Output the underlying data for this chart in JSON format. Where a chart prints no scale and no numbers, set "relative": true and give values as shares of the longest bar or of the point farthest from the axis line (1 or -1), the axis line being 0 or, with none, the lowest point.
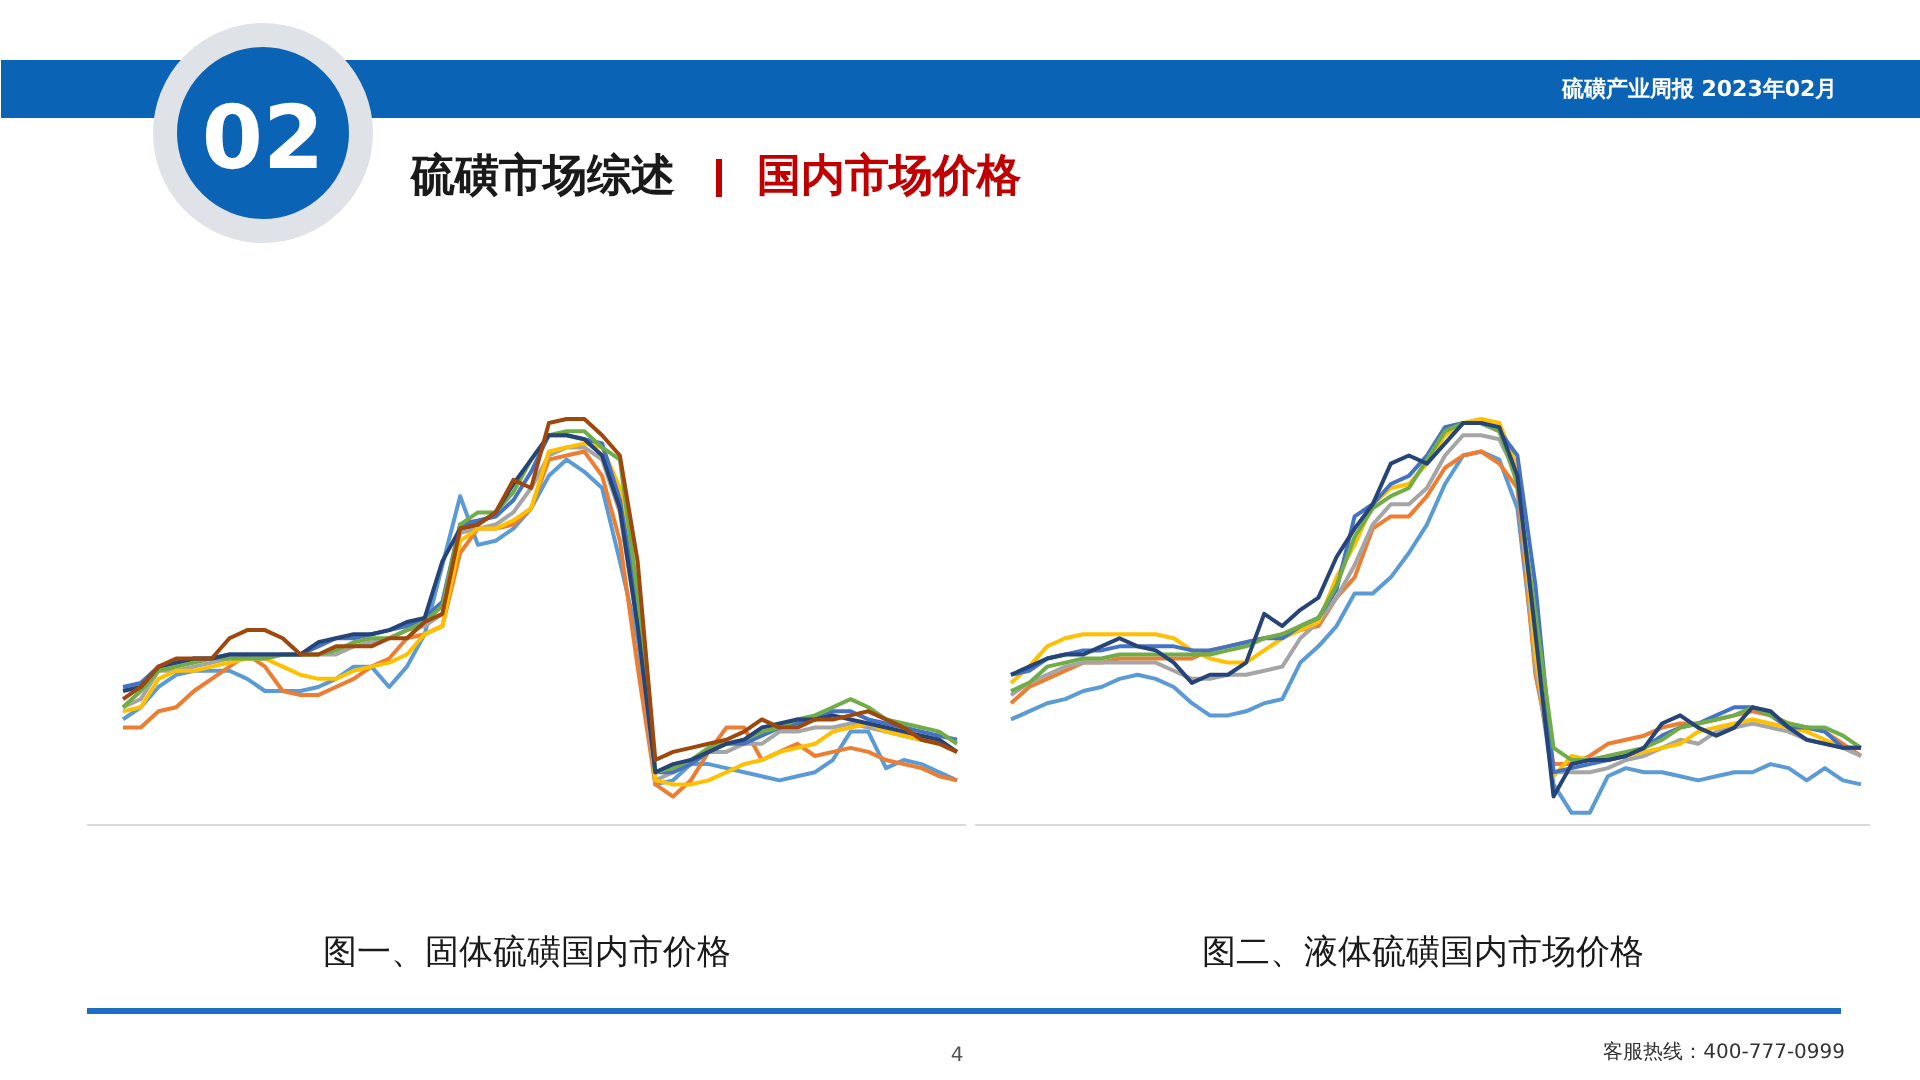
{
  "chart_data": [
    {
      "type": "other",
      "title": "硫磺市场综述",
      "subtitle": "国内市场价格",
      "annotations": [
        "02",
        "硫磺产业周报  2023年02月",
        "4",
        "客服热线：400-777-0999"
      ]
    },
    {
      "type": "line",
      "title": "图一、固体硫磺国内市价格",
      "relative": true,
      "categories": [
        null,
        null,
        null,
        null,
        null,
        null,
        null,
        null,
        null,
        null,
        null,
        null,
        null,
        null,
        null,
        null,
        null,
        null,
        null,
        null,
        null,
        null,
        null,
        null,
        null,
        null,
        null,
        null,
        null,
        null,
        null,
        null,
        null,
        null,
        null,
        null,
        null,
        null,
        null,
        null,
        null,
        null,
        null,
        null,
        null,
        null,
        null,
        null
      ],
      "series": [
        {
          "color": "#5b9bd5",
          "values": [
            0.26,
            0.29,
            0.34,
            0.37,
            0.38,
            0.38,
            0.38,
            0.36,
            0.33,
            0.33,
            0.33,
            0.34,
            0.36,
            0.39,
            0.39,
            0.34,
            0.39,
            0.47,
            0.64,
            0.81,
            0.69,
            0.7,
            0.73,
            0.78,
            0.86,
            0.9,
            0.87,
            0.83,
            0.65,
            0.46,
            0.1,
            0.11,
            0.15,
            0.15,
            0.14,
            0.13,
            0.12,
            0.11,
            0.12,
            0.13,
            0.16,
            0.23,
            0.23,
            0.14,
            0.16,
            0.15,
            0.13,
            0.11
          ]
        },
        {
          "color": "#ed7d31",
          "values": [
            0.24,
            0.24,
            0.28,
            0.29,
            0.33,
            0.36,
            0.39,
            0.42,
            0.39,
            0.33,
            0.32,
            0.32,
            0.34,
            0.36,
            0.39,
            0.41,
            0.46,
            0.47,
            0.49,
            0.67,
            0.73,
            0.73,
            0.74,
            0.78,
            0.9,
            0.91,
            0.92,
            0.86,
            0.7,
            0.39,
            0.1,
            0.07,
            0.11,
            0.18,
            0.24,
            0.24,
            0.16,
            0.18,
            0.2,
            0.17,
            0.18,
            0.19,
            0.18,
            0.16,
            0.15,
            0.14,
            0.12,
            0.11
          ]
        },
        {
          "color": "#a5a5a5",
          "values": [
            0.29,
            0.31,
            0.38,
            0.38,
            0.39,
            0.4,
            0.41,
            0.41,
            0.41,
            0.42,
            0.42,
            0.42,
            0.42,
            0.44,
            0.45,
            0.46,
            0.48,
            0.49,
            0.52,
            0.72,
            0.73,
            0.74,
            0.77,
            0.83,
            0.91,
            0.93,
            0.93,
            0.9,
            0.77,
            0.49,
            0.11,
            0.13,
            0.15,
            0.18,
            0.18,
            0.2,
            0.2,
            0.23,
            0.23,
            0.24,
            0.24,
            0.25,
            0.24,
            0.23,
            0.22,
            0.21,
            0.2,
            0.18
          ]
        },
        {
          "color": "#ffc000",
          "values": [
            0.28,
            0.29,
            0.36,
            0.38,
            0.38,
            0.39,
            0.4,
            0.41,
            0.41,
            0.39,
            0.37,
            0.36,
            0.36,
            0.38,
            0.39,
            0.4,
            0.42,
            0.47,
            0.49,
            0.7,
            0.73,
            0.73,
            0.75,
            0.78,
            0.92,
            0.93,
            0.94,
            0.93,
            0.83,
            0.57,
            0.11,
            0.1,
            0.1,
            0.11,
            0.13,
            0.15,
            0.16,
            0.18,
            0.19,
            0.2,
            0.23,
            0.24,
            0.25,
            0.23,
            0.22,
            0.21,
            0.2,
            0.18
          ]
        },
        {
          "color": "#4472c4",
          "values": [
            0.34,
            0.35,
            0.39,
            0.4,
            0.41,
            0.41,
            0.42,
            0.42,
            0.42,
            0.42,
            0.42,
            0.44,
            0.46,
            0.46,
            0.47,
            0.48,
            0.49,
            0.51,
            0.55,
            0.74,
            0.75,
            0.76,
            0.8,
            0.87,
            0.96,
            0.96,
            0.95,
            0.94,
            0.8,
            0.54,
            0.13,
            0.13,
            0.15,
            0.18,
            0.2,
            0.2,
            0.22,
            0.24,
            0.25,
            0.26,
            0.28,
            0.28,
            0.26,
            0.25,
            0.24,
            0.23,
            0.22,
            0.21
          ]
        },
        {
          "color": "#70ad47",
          "values": [
            0.29,
            0.33,
            0.38,
            0.39,
            0.4,
            0.41,
            0.41,
            0.41,
            0.41,
            0.42,
            0.42,
            0.42,
            0.43,
            0.45,
            0.46,
            0.46,
            0.48,
            0.5,
            0.54,
            0.74,
            0.77,
            0.77,
            0.82,
            0.9,
            0.96,
            0.97,
            0.97,
            0.93,
            0.9,
            0.57,
            0.13,
            0.14,
            0.16,
            0.19,
            0.2,
            0.21,
            0.23,
            0.24,
            0.26,
            0.27,
            0.29,
            0.31,
            0.29,
            0.26,
            0.25,
            0.24,
            0.23,
            0.2
          ]
        },
        {
          "color": "#264478",
          "values": [
            0.33,
            0.34,
            0.39,
            0.4,
            0.41,
            0.41,
            0.42,
            0.42,
            0.42,
            0.42,
            0.42,
            0.45,
            0.46,
            0.47,
            0.47,
            0.48,
            0.5,
            0.51,
            0.65,
            0.73,
            0.74,
            0.77,
            0.84,
            0.9,
            0.96,
            0.96,
            0.95,
            0.91,
            0.78,
            0.49,
            0.13,
            0.15,
            0.16,
            0.18,
            0.2,
            0.21,
            0.24,
            0.25,
            0.26,
            0.26,
            0.27,
            0.26,
            0.25,
            0.24,
            0.23,
            0.22,
            0.21,
            0.18
          ]
        },
        {
          "color": "#9e480e",
          "values": [
            0.31,
            0.34,
            0.39,
            0.41,
            0.41,
            0.41,
            0.46,
            0.48,
            0.48,
            0.46,
            0.42,
            0.42,
            0.44,
            0.44,
            0.44,
            0.46,
            0.46,
            0.5,
            0.52,
            0.73,
            0.74,
            0.77,
            0.85,
            0.83,
            0.99,
            1.0,
            1.0,
            0.96,
            0.91,
            0.65,
            0.16,
            0.18,
            0.19,
            0.2,
            0.21,
            0.23,
            0.26,
            0.24,
            0.24,
            0.26,
            0.26,
            0.27,
            0.28,
            0.26,
            0.24,
            0.21,
            0.2,
            0.18
          ]
        }
      ]
    },
    {
      "type": "line",
      "title": "图二、液体硫磺国内市场价格",
      "relative": true,
      "categories": [
        null,
        null,
        null,
        null,
        null,
        null,
        null,
        null,
        null,
        null,
        null,
        null,
        null,
        null,
        null,
        null,
        null,
        null,
        null,
        null,
        null,
        null,
        null,
        null,
        null,
        null,
        null,
        null,
        null,
        null,
        null,
        null,
        null,
        null,
        null,
        null,
        null,
        null,
        null,
        null,
        null,
        null,
        null,
        null,
        null,
        null,
        null,
        null
      ],
      "series": [
        {
          "color": "#5b9bd5",
          "values": [
            0.26,
            0.28,
            0.3,
            0.31,
            0.33,
            0.34,
            0.36,
            0.37,
            0.36,
            0.34,
            0.3,
            0.27,
            0.27,
            0.28,
            0.3,
            0.31,
            0.4,
            0.44,
            0.49,
            0.57,
            0.57,
            0.61,
            0.67,
            0.74,
            0.84,
            0.91,
            0.92,
            0.9,
            0.78,
            0.4,
            0.1,
            0.03,
            0.03,
            0.12,
            0.14,
            0.13,
            0.13,
            0.12,
            0.11,
            0.12,
            0.13,
            0.13,
            0.15,
            0.14,
            0.11,
            0.14,
            0.11,
            0.1
          ]
        },
        {
          "color": "#ed7d31",
          "values": [
            0.3,
            0.34,
            0.36,
            0.38,
            0.4,
            0.4,
            0.41,
            0.41,
            0.41,
            0.41,
            0.41,
            0.43,
            0.44,
            0.45,
            0.46,
            0.47,
            0.48,
            0.49,
            0.56,
            0.61,
            0.73,
            0.76,
            0.76,
            0.81,
            0.88,
            0.91,
            0.92,
            0.89,
            0.83,
            0.37,
            0.15,
            0.15,
            0.17,
            0.2,
            0.21,
            0.22,
            0.24,
            0.25,
            0.25,
            0.26,
            0.27,
            0.28,
            0.27,
            0.25,
            0.24,
            0.23,
            0.2,
            0.17
          ]
        },
        {
          "color": "#a5a5a5",
          "values": [
            0.32,
            0.35,
            0.37,
            0.39,
            0.4,
            0.4,
            0.4,
            0.4,
            0.4,
            0.38,
            0.36,
            0.36,
            0.37,
            0.37,
            0.38,
            0.39,
            0.46,
            0.5,
            0.56,
            0.64,
            0.74,
            0.79,
            0.79,
            0.83,
            0.91,
            0.96,
            0.96,
            0.95,
            0.86,
            0.39,
            0.13,
            0.13,
            0.13,
            0.14,
            0.16,
            0.17,
            0.19,
            0.21,
            0.2,
            0.23,
            0.24,
            0.25,
            0.24,
            0.23,
            0.21,
            0.2,
            0.19,
            0.17
          ]
        },
        {
          "color": "#ffc000",
          "values": [
            0.35,
            0.39,
            0.44,
            0.46,
            0.47,
            0.47,
            0.47,
            0.47,
            0.47,
            0.46,
            0.43,
            0.41,
            0.4,
            0.4,
            0.43,
            0.46,
            0.48,
            0.5,
            0.61,
            0.69,
            0.79,
            0.83,
            0.84,
            0.89,
            0.96,
            0.99,
            1.0,
            0.99,
            0.88,
            0.42,
            0.12,
            0.17,
            0.16,
            0.16,
            0.17,
            0.18,
            0.19,
            0.2,
            0.23,
            0.24,
            0.25,
            0.26,
            0.25,
            0.24,
            0.23,
            0.21,
            0.19,
            0.19
          ]
        },
        {
          "color": "#4472c4",
          "values": [
            0.37,
            0.38,
            0.41,
            0.42,
            0.43,
            0.43,
            0.44,
            0.44,
            0.44,
            0.44,
            0.43,
            0.43,
            0.44,
            0.45,
            0.46,
            0.46,
            0.49,
            0.51,
            0.58,
            0.76,
            0.79,
            0.84,
            0.86,
            0.91,
            0.98,
            0.99,
            0.99,
            0.97,
            0.91,
            0.59,
            0.13,
            0.14,
            0.15,
            0.16,
            0.17,
            0.19,
            0.22,
            0.24,
            0.25,
            0.27,
            0.29,
            0.29,
            0.27,
            0.24,
            0.24,
            0.23,
            0.19,
            0.19
          ]
        },
        {
          "color": "#70ad47",
          "values": [
            0.33,
            0.35,
            0.39,
            0.4,
            0.41,
            0.41,
            0.42,
            0.42,
            0.42,
            0.42,
            0.42,
            0.42,
            0.43,
            0.44,
            0.46,
            0.47,
            0.49,
            0.51,
            0.59,
            0.71,
            0.78,
            0.81,
            0.83,
            0.9,
            0.97,
            0.99,
            0.99,
            0.97,
            0.84,
            0.52,
            0.19,
            0.16,
            0.16,
            0.17,
            0.18,
            0.19,
            0.21,
            0.24,
            0.25,
            0.26,
            0.27,
            0.29,
            0.27,
            0.25,
            0.24,
            0.24,
            0.22,
            0.19
          ]
        },
        {
          "color": "#264478",
          "values": [
            0.37,
            0.39,
            0.41,
            0.42,
            0.42,
            0.44,
            0.46,
            0.44,
            0.43,
            0.4,
            0.35,
            0.37,
            0.37,
            0.4,
            0.52,
            0.49,
            0.53,
            0.56,
            0.66,
            0.73,
            0.79,
            0.89,
            0.91,
            0.89,
            0.94,
            0.99,
            0.99,
            0.98,
            0.86,
            0.47,
            0.07,
            0.15,
            0.16,
            0.16,
            0.17,
            0.19,
            0.25,
            0.27,
            0.24,
            0.22,
            0.24,
            0.29,
            0.28,
            0.24,
            0.21,
            0.2,
            0.19,
            0.19
          ]
        }
      ]
    }
  ]
}
